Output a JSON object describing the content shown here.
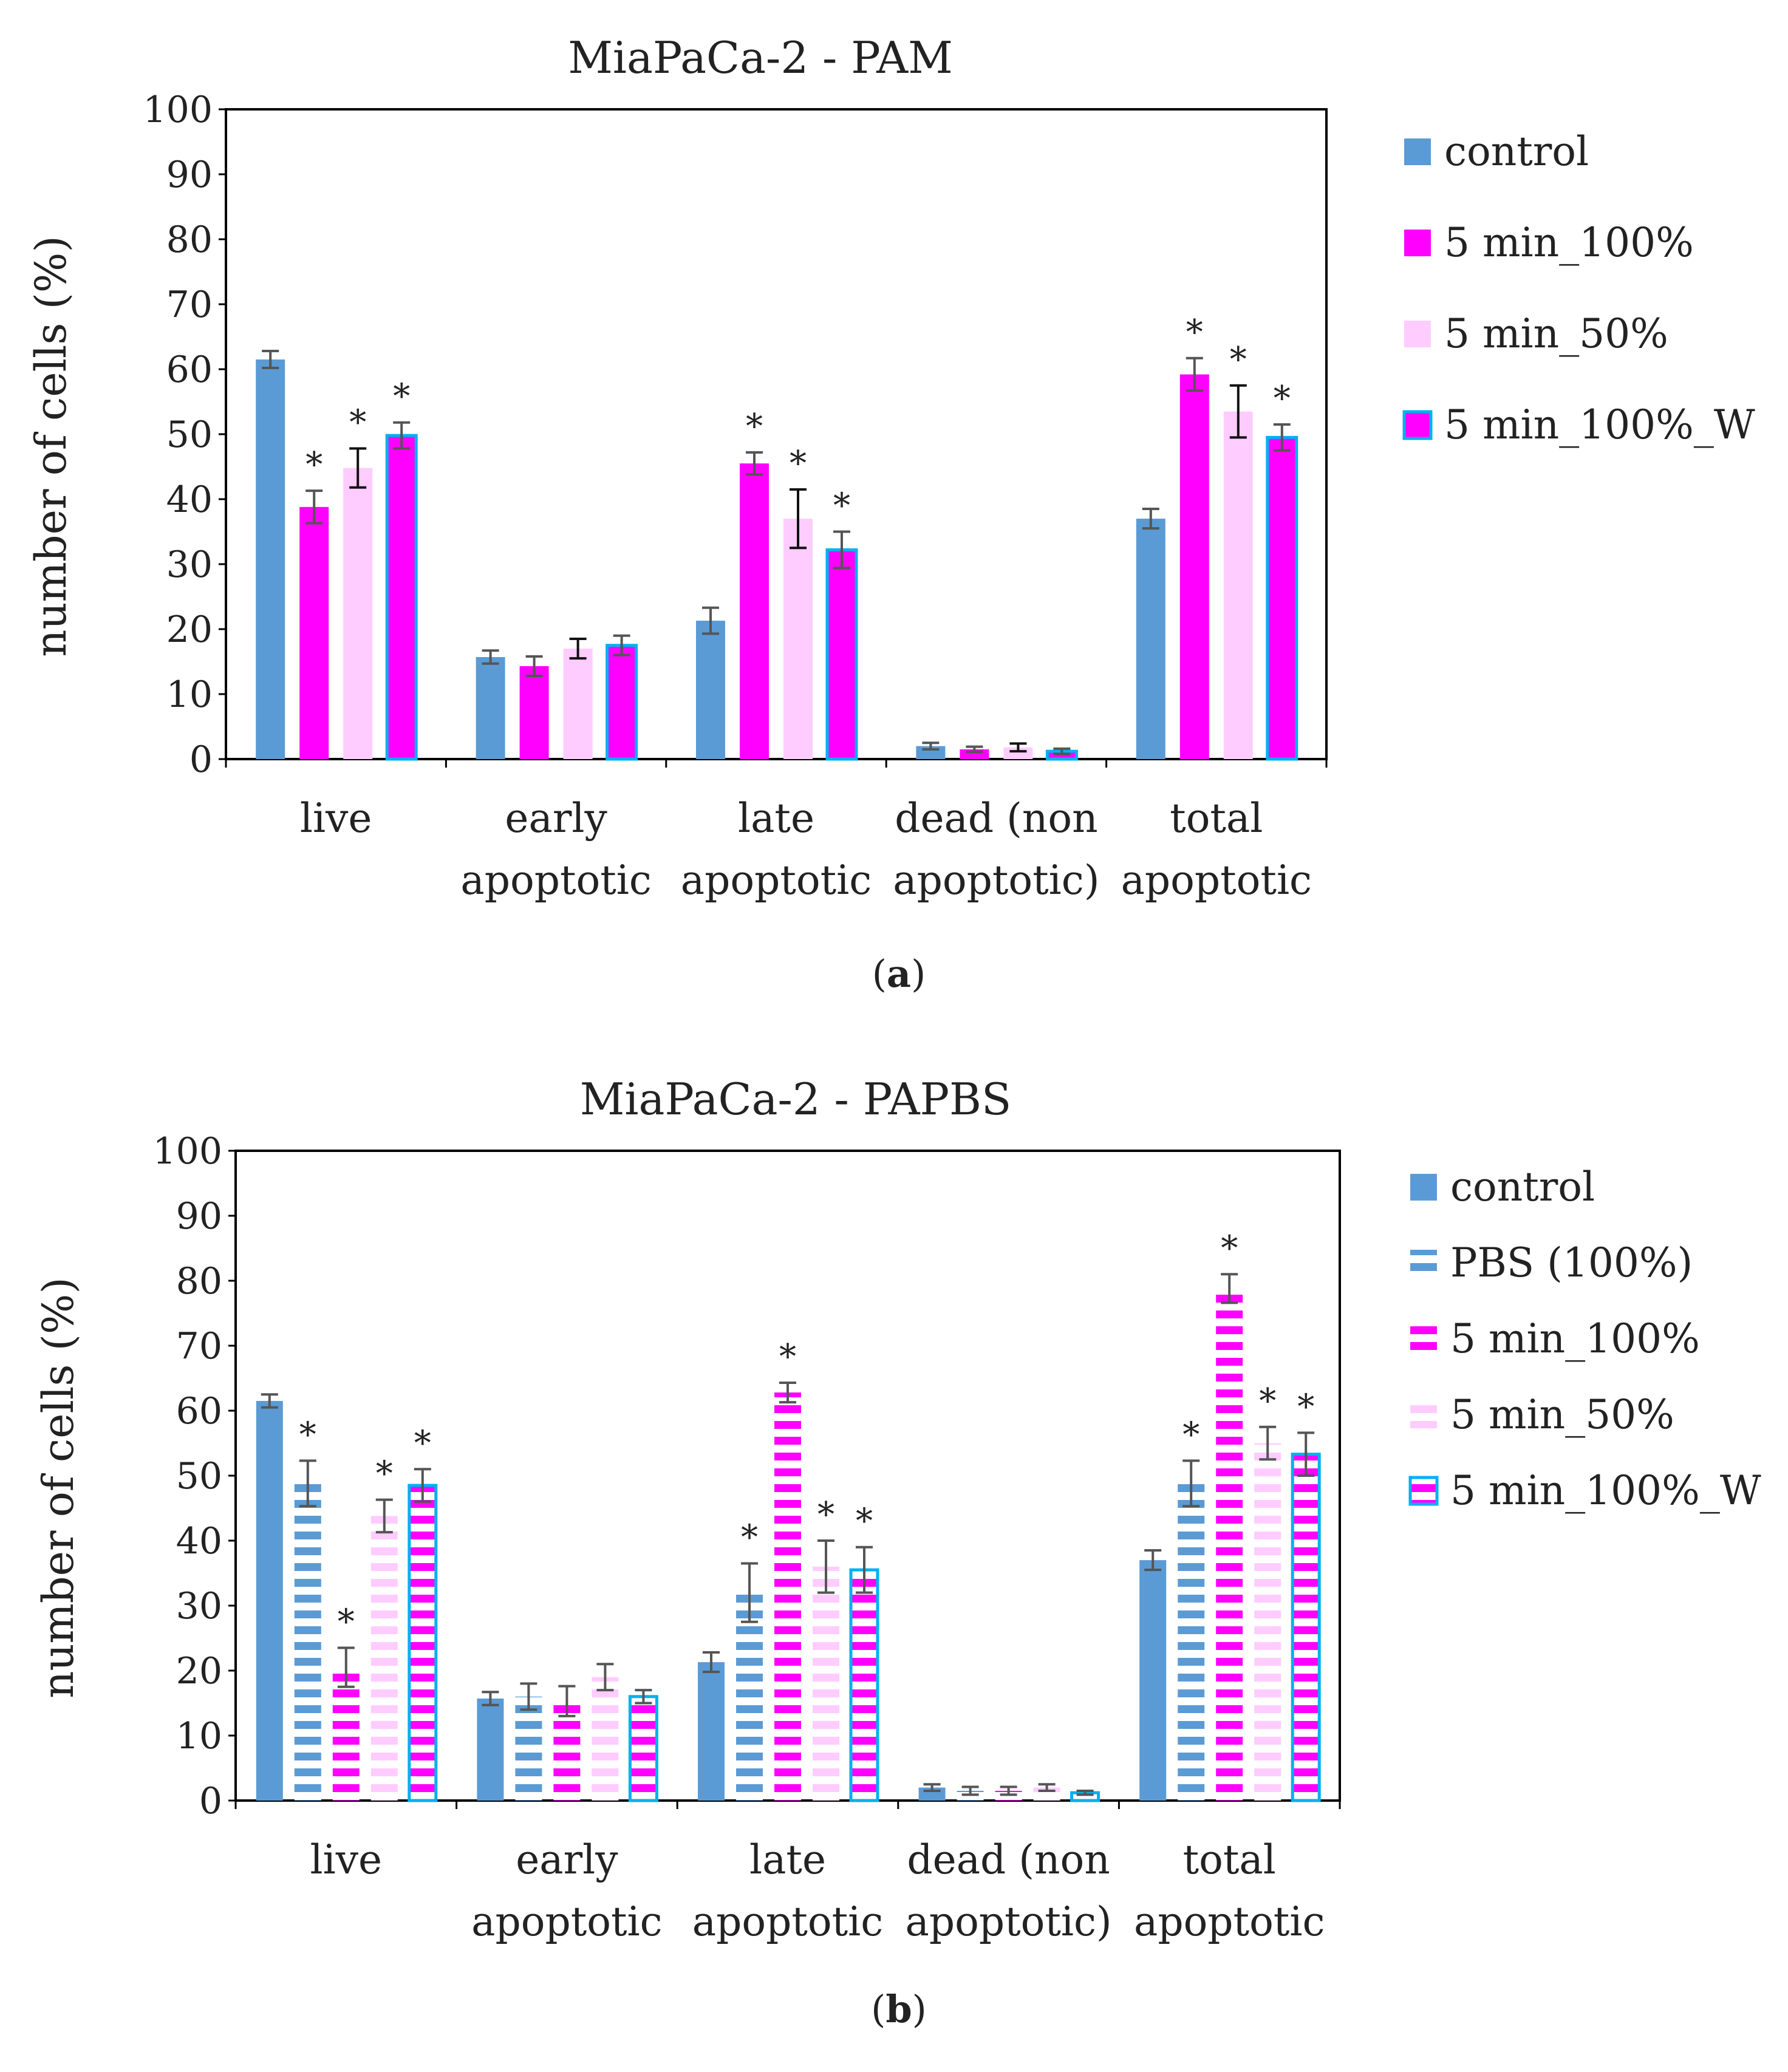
{
  "chart_data": [
    {
      "type": "bar",
      "panel_label": "a",
      "title": "MiaPaCa-2 - PAM",
      "ylabel": "number of cells (%)",
      "xlabel": "",
      "ylim": [
        0,
        100
      ],
      "yticks": [
        "0",
        "10",
        "20",
        "30",
        "40",
        "50",
        "60",
        "70",
        "80",
        "90",
        "100"
      ],
      "grid": false,
      "legend_position": "right",
      "categories": [
        [
          "live"
        ],
        [
          "early",
          "apoptotic"
        ],
        [
          "late",
          "apoptotic"
        ],
        [
          "dead (non",
          "apoptotic)"
        ],
        [
          "total",
          "apoptotic"
        ]
      ],
      "series": [
        {
          "name": "control",
          "style": "solid",
          "fill": "#5b9bd5",
          "border": "",
          "values": [
            61.5,
            15.7,
            21.3,
            2.0,
            37.0
          ],
          "errors": [
            1.3,
            1.0,
            2.0,
            0.5,
            1.5
          ],
          "significant": [
            false,
            false,
            false,
            false,
            false
          ],
          "error_color": "#555555"
        },
        {
          "name": "5 min_100%",
          "style": "solid",
          "fill": "#ff00ff",
          "border": "",
          "values": [
            38.8,
            14.3,
            45.5,
            1.5,
            59.2
          ],
          "errors": [
            2.5,
            1.5,
            1.7,
            0.4,
            2.5
          ],
          "significant": [
            true,
            false,
            true,
            false,
            true
          ],
          "error_color": "#555555"
        },
        {
          "name": "5 min_50%",
          "style": "solid",
          "fill": "#ffccff",
          "border": "",
          "values": [
            44.8,
            17.0,
            37.0,
            1.8,
            53.5
          ],
          "errors": [
            3.0,
            1.5,
            4.5,
            0.6,
            4.0
          ],
          "significant": [
            true,
            false,
            true,
            false,
            true
          ],
          "error_color": "#111111"
        },
        {
          "name": "5 min_100%_W",
          "style": "solid",
          "fill": "#ff00ff",
          "border": "#00b0f0",
          "values": [
            49.8,
            17.5,
            32.2,
            1.2,
            49.5
          ],
          "errors": [
            2.0,
            1.5,
            2.8,
            0.4,
            2.0
          ],
          "significant": [
            true,
            false,
            true,
            false,
            true
          ],
          "error_color": "#555555"
        }
      ]
    },
    {
      "type": "bar",
      "panel_label": "b",
      "title": "MiaPaCa-2 - PAPBS",
      "ylabel": "number of cells (%)",
      "xlabel": "",
      "ylim": [
        0,
        100
      ],
      "yticks": [
        "0",
        "10",
        "20",
        "30",
        "40",
        "50",
        "60",
        "70",
        "80",
        "90",
        "100"
      ],
      "grid": false,
      "legend_position": "right",
      "categories": [
        [
          "live"
        ],
        [
          "early",
          "apoptotic"
        ],
        [
          "late",
          "apoptotic"
        ],
        [
          "dead (non",
          "apoptotic)"
        ],
        [
          "total",
          "apoptotic"
        ]
      ],
      "series": [
        {
          "name": "control",
          "style": "solid",
          "fill": "#5b9bd5",
          "border": "",
          "values": [
            61.5,
            15.7,
            21.3,
            2.0,
            37.0
          ],
          "errors": [
            1.0,
            1.0,
            1.5,
            0.5,
            1.5
          ],
          "significant": [
            false,
            false,
            false,
            false,
            false
          ],
          "error_color": "#555555"
        },
        {
          "name": "PBS (100%)",
          "style": "striped",
          "fill": "#5b9bd5",
          "border": "",
          "values": [
            48.8,
            16.0,
            32.0,
            1.5,
            48.8
          ],
          "errors": [
            3.5,
            2.0,
            4.5,
            0.6,
            3.5
          ],
          "significant": [
            true,
            false,
            true,
            false,
            true
          ],
          "error_color": "#555555"
        },
        {
          "name": "5 min_100%",
          "style": "striped",
          "fill": "#ff00ff",
          "border": "",
          "values": [
            20.5,
            15.3,
            62.8,
            1.5,
            78.8
          ],
          "errors": [
            3.0,
            2.3,
            1.5,
            0.6,
            2.2
          ],
          "significant": [
            true,
            false,
            true,
            false,
            true
          ],
          "error_color": "#555555"
        },
        {
          "name": "5 min_50%",
          "style": "striped",
          "fill": "#ffccff",
          "border": "",
          "values": [
            43.8,
            19.0,
            36.0,
            2.0,
            55.0
          ],
          "errors": [
            2.5,
            2.0,
            4.0,
            0.5,
            2.5
          ],
          "significant": [
            true,
            false,
            true,
            false,
            true
          ],
          "error_color": "#555555"
        },
        {
          "name": "5 min_100%_W",
          "style": "striped",
          "fill": "#ff00ff",
          "border": "#00b0f0",
          "values": [
            48.5,
            16.0,
            35.5,
            1.2,
            53.3
          ],
          "errors": [
            2.5,
            1.0,
            3.5,
            0.3,
            3.3
          ],
          "significant": [
            true,
            false,
            true,
            false,
            true
          ],
          "error_color": "#555555"
        }
      ]
    }
  ]
}
